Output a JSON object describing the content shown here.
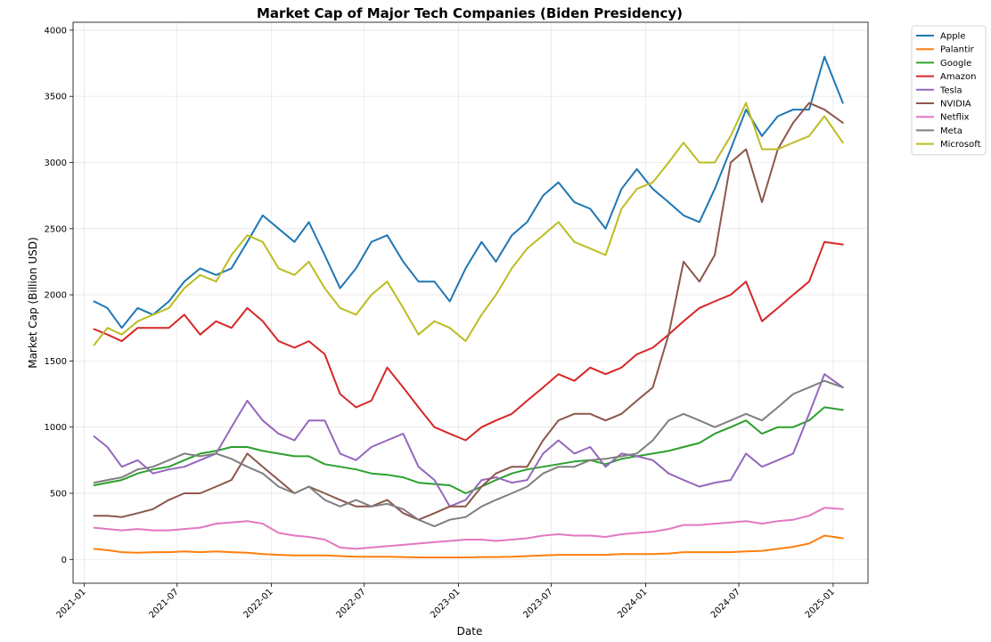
{
  "chart_data": {
    "type": "line",
    "title": "Market Cap of Major Tech Companies (Biden Presidency)",
    "xlabel": "Date",
    "ylabel": "Market Cap (Billion USD)",
    "xlim": [
      "2020-12-10",
      "2025-03-10"
    ],
    "ylim": [
      -180,
      4060
    ],
    "x_ticks": [
      "2021-01",
      "2021-07",
      "2022-01",
      "2022-07",
      "2023-01",
      "2023-07",
      "2024-01",
      "2024-07",
      "2025-01"
    ],
    "y_ticks": [
      0,
      500,
      1000,
      1500,
      2000,
      2500,
      3000,
      3500,
      4000
    ],
    "grid": true,
    "legend_position": "outside-top-right",
    "x": [
      "2021-01-20",
      "2021-02-15",
      "2021-03-15",
      "2021-04-15",
      "2021-05-15",
      "2021-06-15",
      "2021-07-15",
      "2021-08-15",
      "2021-09-15",
      "2021-10-15",
      "2021-11-15",
      "2021-12-15",
      "2022-01-15",
      "2022-02-15",
      "2022-03-15",
      "2022-04-15",
      "2022-05-15",
      "2022-06-15",
      "2022-07-15",
      "2022-08-15",
      "2022-09-15",
      "2022-10-15",
      "2022-11-15",
      "2022-12-15",
      "2023-01-15",
      "2023-02-15",
      "2023-03-15",
      "2023-04-15",
      "2023-05-15",
      "2023-06-15",
      "2023-07-15",
      "2023-08-15",
      "2023-09-15",
      "2023-10-15",
      "2023-11-15",
      "2023-12-15",
      "2024-01-15",
      "2024-02-15",
      "2024-03-15",
      "2024-04-15",
      "2024-05-15",
      "2024-06-15",
      "2024-07-15",
      "2024-08-15",
      "2024-09-15",
      "2024-10-15",
      "2024-11-15",
      "2024-12-15",
      "2025-01-20"
    ],
    "series": [
      {
        "name": "Apple",
        "color": "#1f77b4",
        "values": [
          1950,
          1900,
          1750,
          1900,
          1850,
          1950,
          2100,
          2200,
          2150,
          2200,
          2400,
          2600,
          2500,
          2400,
          2550,
          2300,
          2050,
          2200,
          2400,
          2450,
          2250,
          2100,
          2100,
          1950,
          2200,
          2400,
          2250,
          2450,
          2550,
          2750,
          2850,
          2700,
          2650,
          2500,
          2800,
          2950,
          2800,
          2700,
          2600,
          2550,
          2800,
          3100,
          3400,
          3200,
          3350,
          3400,
          3400,
          3800,
          3450
        ]
      },
      {
        "name": "Palantir",
        "color": "#ff7f0e",
        "values": [
          80,
          70,
          55,
          50,
          55,
          55,
          60,
          55,
          60,
          55,
          50,
          40,
          35,
          30,
          30,
          30,
          25,
          20,
          20,
          20,
          18,
          15,
          15,
          15,
          15,
          18,
          18,
          20,
          25,
          30,
          35,
          35,
          35,
          35,
          40,
          40,
          40,
          45,
          55,
          55,
          55,
          55,
          60,
          65,
          80,
          95,
          120,
          180,
          160
        ]
      },
      {
        "name": "Google",
        "color": "#2ca02c",
        "values": [
          560,
          580,
          600,
          650,
          680,
          700,
          750,
          800,
          820,
          850,
          850,
          820,
          800,
          780,
          780,
          720,
          700,
          680,
          650,
          640,
          620,
          580,
          570,
          560,
          500,
          550,
          600,
          650,
          680,
          700,
          720,
          740,
          750,
          720,
          760,
          780,
          800,
          820,
          850,
          880,
          950,
          1000,
          1050,
          950,
          1000,
          1000,
          1050,
          1150,
          1130
        ]
      },
      {
        "name": "Amazon",
        "color": "#d62728",
        "values": [
          1740,
          1700,
          1650,
          1750,
          1750,
          1750,
          1850,
          1700,
          1800,
          1750,
          1900,
          1800,
          1650,
          1600,
          1650,
          1550,
          1250,
          1150,
          1200,
          1450,
          1300,
          1150,
          1000,
          950,
          900,
          1000,
          1050,
          1100,
          1200,
          1300,
          1400,
          1350,
          1450,
          1400,
          1450,
          1550,
          1600,
          1700,
          1800,
          1900,
          1950,
          2000,
          2100,
          1800,
          1900,
          2000,
          2100,
          2400,
          2380
        ]
      },
      {
        "name": "Tesla",
        "color": "#9467bd",
        "values": [
          930,
          850,
          700,
          750,
          650,
          680,
          700,
          750,
          800,
          1000,
          1200,
          1050,
          950,
          900,
          1050,
          1050,
          800,
          750,
          850,
          900,
          950,
          700,
          600,
          400,
          450,
          600,
          620,
          580,
          600,
          800,
          900,
          800,
          850,
          700,
          800,
          780,
          750,
          650,
          600,
          550,
          580,
          600,
          800,
          700,
          750,
          800,
          1100,
          1400,
          1300
        ]
      },
      {
        "name": "NVIDIA",
        "color": "#8c564b",
        "values": [
          330,
          330,
          320,
          350,
          380,
          450,
          500,
          500,
          550,
          600,
          800,
          700,
          600,
          500,
          550,
          500,
          450,
          400,
          400,
          450,
          350,
          300,
          350,
          400,
          400,
          550,
          650,
          700,
          700,
          900,
          1050,
          1100,
          1100,
          1050,
          1100,
          1200,
          1300,
          1700,
          2250,
          2100,
          2300,
          3000,
          3100,
          2700,
          3100,
          3300,
          3450,
          3400,
          3300
        ]
      },
      {
        "name": "Netflix",
        "color": "#e377c2",
        "values": [
          240,
          230,
          220,
          230,
          220,
          220,
          230,
          240,
          270,
          280,
          290,
          270,
          200,
          180,
          170,
          150,
          90,
          80,
          90,
          100,
          110,
          120,
          130,
          140,
          150,
          150,
          140,
          150,
          160,
          180,
          190,
          180,
          180,
          170,
          190,
          200,
          210,
          230,
          260,
          260,
          270,
          280,
          290,
          270,
          290,
          300,
          330,
          390,
          380
        ]
      },
      {
        "name": "Meta",
        "color": "#7f7f7f",
        "values": [
          580,
          600,
          620,
          680,
          700,
          750,
          800,
          780,
          800,
          760,
          700,
          650,
          550,
          500,
          550,
          450,
          400,
          450,
          400,
          420,
          380,
          300,
          250,
          300,
          320,
          400,
          450,
          500,
          550,
          650,
          700,
          700,
          750,
          760,
          780,
          800,
          900,
          1050,
          1100,
          1050,
          1000,
          1050,
          1100,
          1050,
          1150,
          1250,
          1300,
          1350,
          1300
        ]
      },
      {
        "name": "Microsoft",
        "color": "#bcbd22",
        "values": [
          1620,
          1750,
          1700,
          1800,
          1850,
          1900,
          2050,
          2150,
          2100,
          2300,
          2450,
          2400,
          2200,
          2150,
          2250,
          2050,
          1900,
          1850,
          2000,
          2100,
          1900,
          1700,
          1800,
          1750,
          1650,
          1850,
          2000,
          2200,
          2350,
          2450,
          2550,
          2400,
          2350,
          2300,
          2650,
          2800,
          2850,
          3000,
          3150,
          3000,
          3000,
          3200,
          3450,
          3100,
          3100,
          3150,
          3200,
          3350,
          3150
        ]
      }
    ]
  }
}
